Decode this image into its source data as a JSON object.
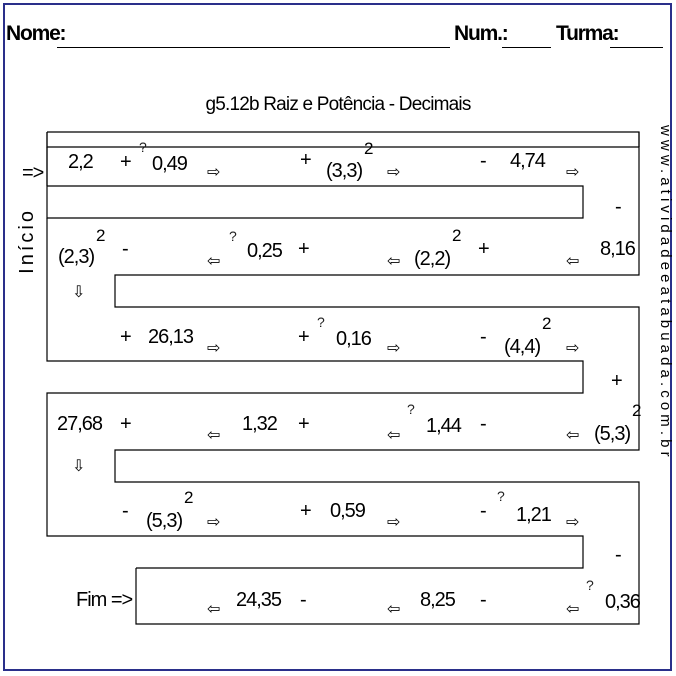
{
  "header": {
    "name_label": "Nome:",
    "num_label": "Num.:",
    "turma_label": "Turma:"
  },
  "title": "g5.12b Raiz e Potência - Decimais",
  "side_label": "Início",
  "url": "www.atividadeeatabuada.com.br",
  "start_label": "=>",
  "end_label": "Fim =>",
  "radical": "?",
  "exp": "2",
  "right_arrow": "⇨",
  "left_arrow": "⇦",
  "down_arrow": "⇩",
  "rows": {
    "r1": [
      "2,2",
      "+",
      "0,49",
      "+",
      "(3,3)",
      "-",
      "4,74"
    ],
    "turn1": "-",
    "r2": [
      "(2,3)",
      "-",
      "0,25",
      "+",
      "(2,2)",
      "+",
      "8,16"
    ],
    "r3": [
      "+",
      "26,13",
      "+",
      "0,16",
      "-",
      "(4,4)"
    ],
    "turn3": "+",
    "r4": [
      "27,68",
      "+",
      "1,32",
      "+",
      "1,44",
      "-",
      "(5,3)"
    ],
    "r5": [
      "-",
      "(5,3)",
      "+",
      "0,59",
      "-",
      "1,21"
    ],
    "turn5": "-",
    "r6": [
      "24,35",
      "-",
      "8,25",
      "-",
      "0,36"
    ]
  }
}
